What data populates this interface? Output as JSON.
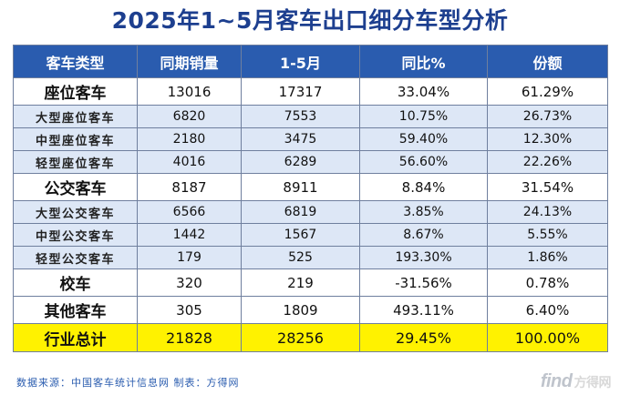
{
  "title": "2025年1~5月客车出口细分车型分析",
  "table": {
    "headers": [
      "客车类型",
      "同期销量",
      "1-5月",
      "同比%",
      "份额"
    ],
    "rows": [
      {
        "type": "main",
        "cells": [
          "座位客车",
          "13016",
          "17317",
          "33.04%",
          "61.29%"
        ]
      },
      {
        "type": "sub",
        "cells": [
          "大型座位客车",
          "6820",
          "7553",
          "10.75%",
          "26.73%"
        ]
      },
      {
        "type": "sub",
        "cells": [
          "中型座位客车",
          "2180",
          "3475",
          "59.40%",
          "12.30%"
        ]
      },
      {
        "type": "sub",
        "cells": [
          "轻型座位客车",
          "4016",
          "6289",
          "56.60%",
          "22.26%"
        ]
      },
      {
        "type": "main",
        "cells": [
          "公交客车",
          "8187",
          "8911",
          "8.84%",
          "31.54%"
        ]
      },
      {
        "type": "sub",
        "cells": [
          "大型公交客车",
          "6566",
          "6819",
          "3.85%",
          "24.13%"
        ]
      },
      {
        "type": "sub",
        "cells": [
          "中型公交客车",
          "1442",
          "1567",
          "8.67%",
          "5.55%"
        ]
      },
      {
        "type": "sub",
        "cells": [
          "轻型公交客车",
          "179",
          "525",
          "193.30%",
          "1.86%"
        ]
      },
      {
        "type": "main",
        "cells": [
          "校车",
          "320",
          "219",
          "-31.56%",
          "0.78%"
        ]
      },
      {
        "type": "main",
        "cells": [
          "其他客车",
          "305",
          "1809",
          "493.11%",
          "6.40%"
        ]
      },
      {
        "type": "total",
        "cells": [
          "行业总计",
          "21828",
          "28256",
          "29.45%",
          "100.00%"
        ]
      }
    ]
  },
  "footer": "数据来源：中国客车统计信息网  制表：方得网",
  "logo": {
    "text": "find",
    "accent": "方得网"
  },
  "colors": {
    "header_bg": "#2a5caf",
    "sub_row_bg": "#dde7f6",
    "total_bg": "#fff200",
    "title": "#1d3f8f"
  }
}
